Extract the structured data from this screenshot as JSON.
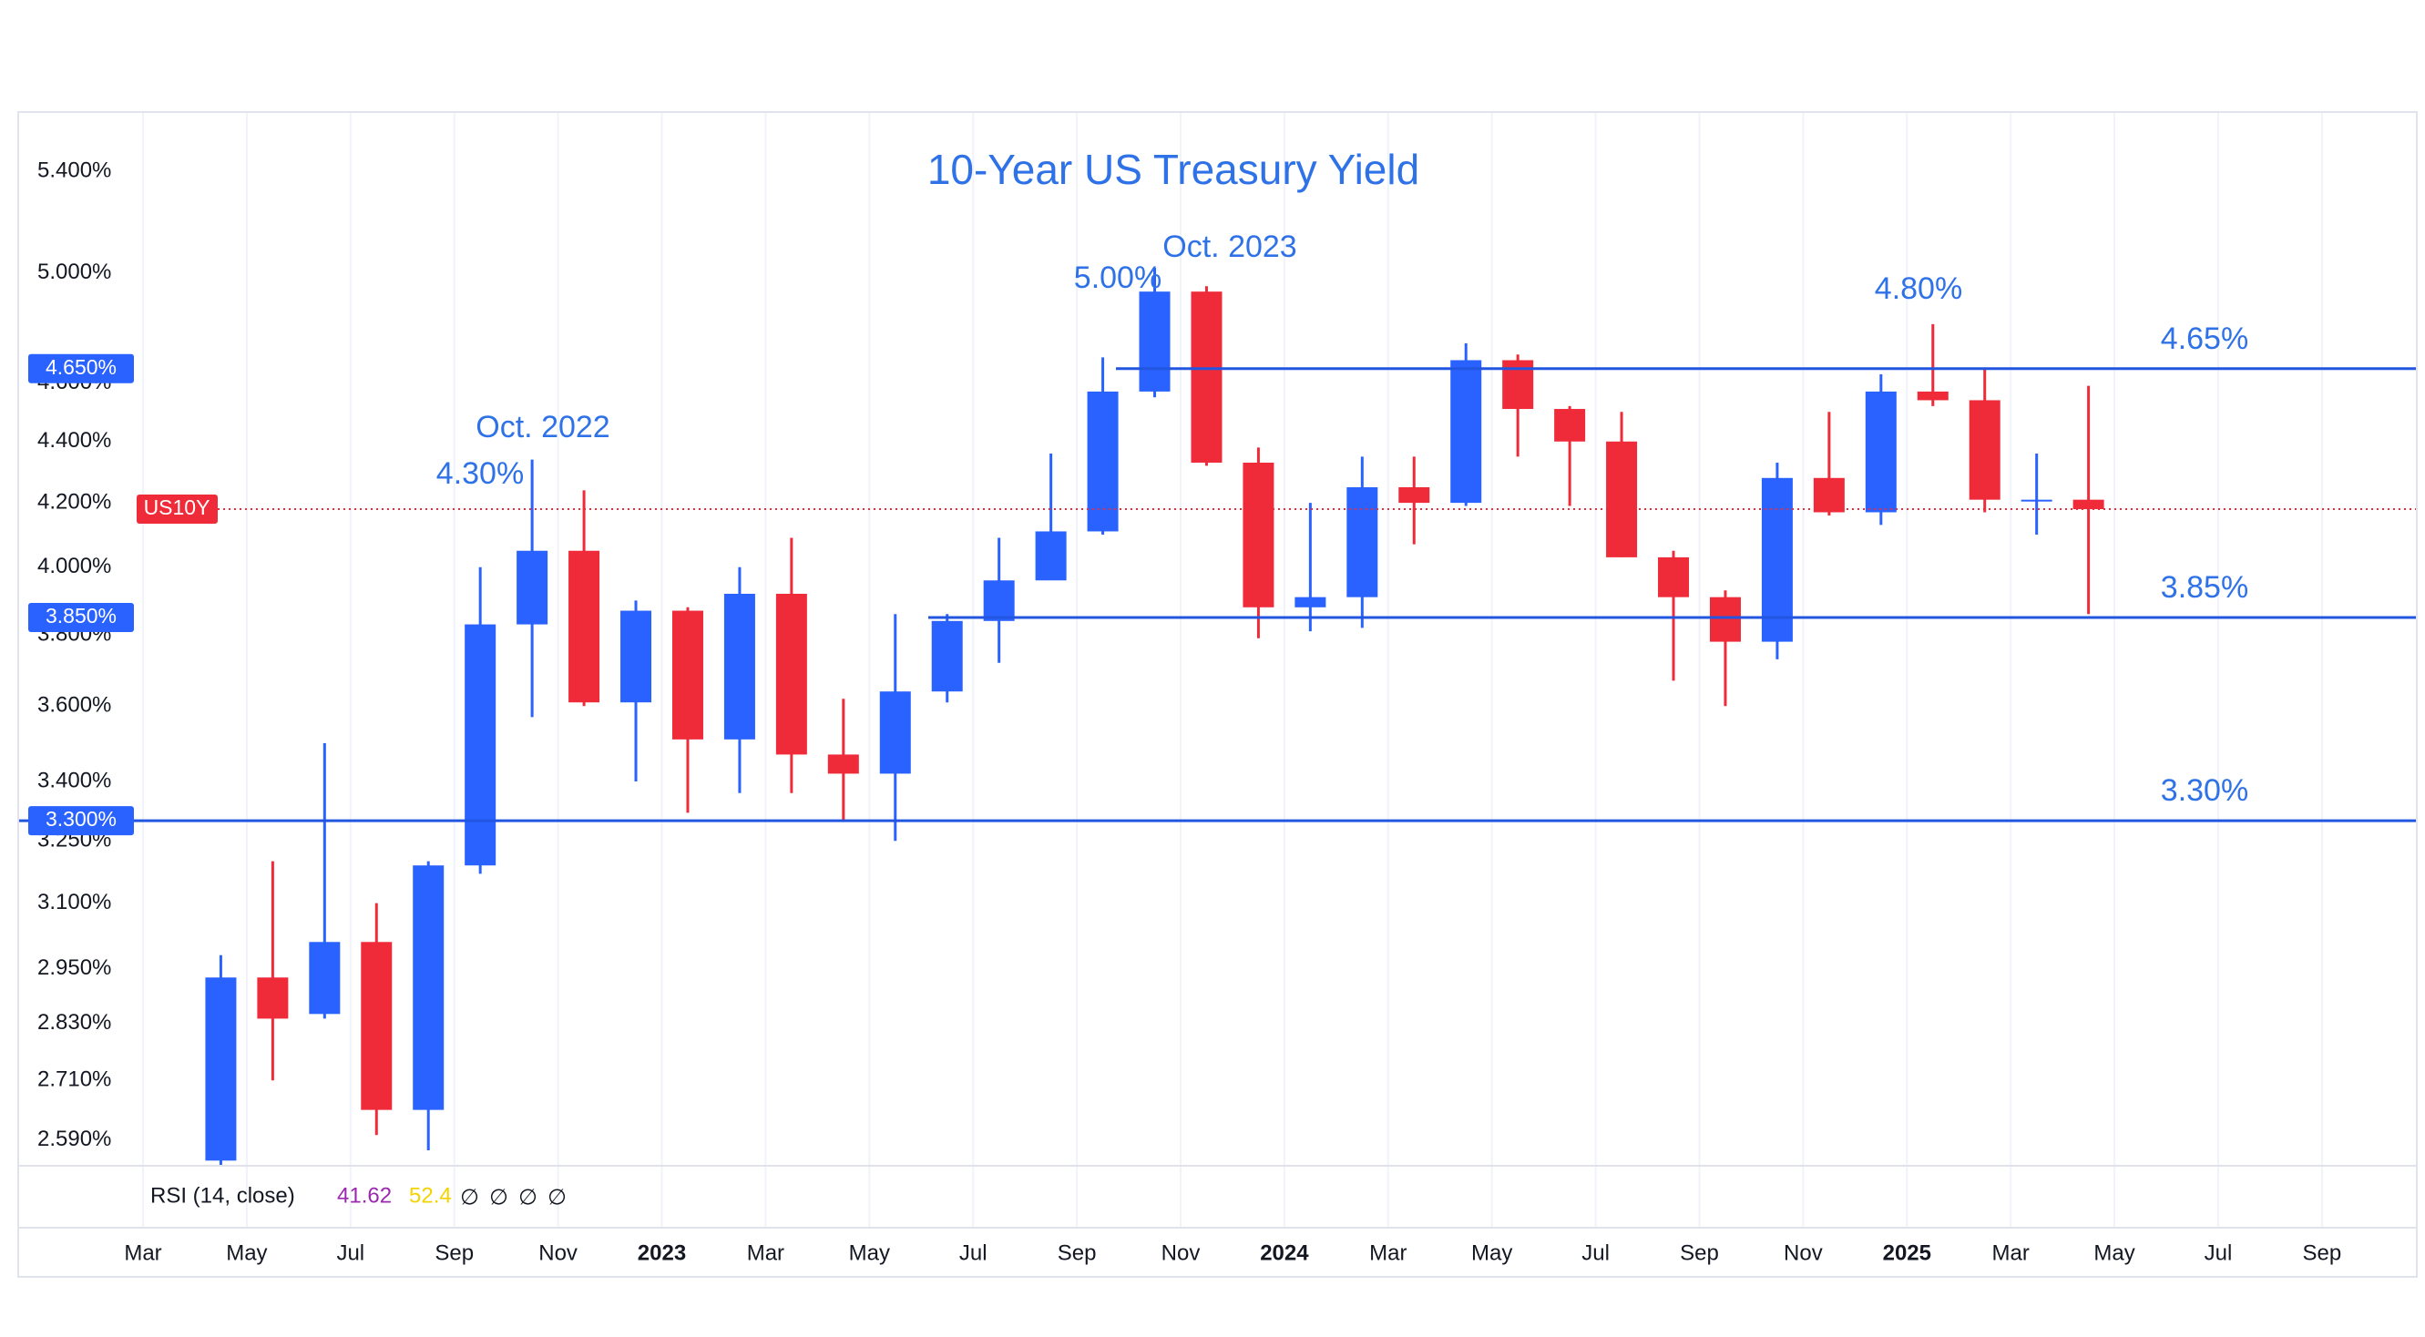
{
  "chart_data": {
    "type": "candlestick",
    "title": "10-Year US Treasury Yield",
    "symbol": "US10Y",
    "log_scale": true,
    "grid": true,
    "up_color": "#2962ff",
    "down_color": "#ef2b3a",
    "x": [
      "2022-04",
      "2022-05",
      "2022-06",
      "2022-07",
      "2022-08",
      "2022-09",
      "2022-10",
      "2022-11",
      "2022-12",
      "2023-01",
      "2023-02",
      "2023-03",
      "2023-04",
      "2023-05",
      "2023-06",
      "2023-07",
      "2023-08",
      "2023-09",
      "2023-10",
      "2023-11",
      "2023-12",
      "2024-01",
      "2024-02",
      "2024-03",
      "2024-04",
      "2024-05",
      "2024-06",
      "2024-07",
      "2024-08",
      "2024-09",
      "2024-10",
      "2024-11",
      "2024-12",
      "2025-01",
      "2025-02",
      "2025-03",
      "2025-04"
    ],
    "open": [
      2.55,
      2.93,
      2.85,
      3.01,
      2.65,
      3.19,
      3.83,
      4.05,
      3.61,
      3.87,
      3.51,
      3.92,
      3.47,
      3.42,
      3.64,
      3.84,
      3.96,
      4.11,
      4.57,
      4.93,
      4.33,
      3.88,
      3.91,
      4.25,
      4.2,
      4.68,
      4.51,
      4.4,
      4.03,
      3.91,
      3.78,
      4.28,
      4.17,
      4.57,
      4.54,
      4.21,
      4.21
    ],
    "high": [
      2.98,
      3.2,
      3.5,
      3.1,
      3.2,
      4.0,
      4.34,
      4.24,
      3.9,
      3.88,
      4.0,
      4.09,
      3.62,
      3.86,
      3.86,
      4.09,
      4.36,
      4.69,
      5.02,
      4.95,
      4.38,
      4.2,
      4.35,
      4.35,
      4.74,
      4.7,
      4.52,
      4.5,
      4.05,
      3.93,
      4.33,
      4.5,
      4.63,
      4.81,
      4.65,
      4.36,
      4.59
    ],
    "low": [
      2.54,
      2.71,
      2.84,
      2.6,
      2.57,
      3.17,
      3.57,
      3.6,
      3.4,
      3.32,
      3.37,
      3.37,
      3.3,
      3.25,
      3.61,
      3.72,
      3.98,
      4.1,
      4.55,
      4.32,
      3.79,
      3.81,
      3.82,
      4.07,
      4.19,
      4.35,
      4.19,
      4.03,
      3.67,
      3.6,
      3.73,
      4.16,
      4.13,
      4.52,
      4.17,
      4.1,
      3.86
    ],
    "close": [
      2.93,
      2.84,
      3.01,
      2.65,
      3.19,
      3.83,
      4.05,
      3.61,
      3.87,
      3.51,
      3.92,
      3.47,
      3.42,
      3.64,
      3.84,
      3.96,
      4.11,
      4.57,
      4.93,
      4.33,
      3.88,
      3.91,
      4.25,
      4.2,
      4.68,
      4.51,
      4.4,
      4.03,
      3.91,
      3.78,
      4.28,
      4.17,
      4.57,
      4.54,
      4.21,
      4.21,
      4.18
    ],
    "ylim": [
      2.54,
      5.63
    ],
    "yticks": [
      {
        "value": 2.59,
        "label": "2.590%"
      },
      {
        "value": 2.71,
        "label": "2.710%"
      },
      {
        "value": 2.83,
        "label": "2.830%"
      },
      {
        "value": 2.95,
        "label": "2.950%"
      },
      {
        "value": 3.1,
        "label": "3.100%"
      },
      {
        "value": 3.25,
        "label": "3.250%"
      },
      {
        "value": 3.4,
        "label": "3.400%"
      },
      {
        "value": 3.6,
        "label": "3.600%"
      },
      {
        "value": 3.8,
        "label": "3.800%"
      },
      {
        "value": 4.0,
        "label": "4.000%"
      },
      {
        "value": 4.2,
        "label": "4.200%"
      },
      {
        "value": 4.4,
        "label": "4.400%"
      },
      {
        "value": 4.6,
        "label": "4.600%"
      },
      {
        "value": 5.0,
        "label": "5.000%"
      },
      {
        "value": 5.4,
        "label": "5.400%"
      }
    ],
    "xticks": [
      {
        "value": "2022-03",
        "label": "Mar"
      },
      {
        "value": "2022-05",
        "label": "May"
      },
      {
        "value": "2022-07",
        "label": "Jul"
      },
      {
        "value": "2022-09",
        "label": "Sep"
      },
      {
        "value": "2022-11",
        "label": "Nov"
      },
      {
        "value": "2023-01",
        "label": "2023"
      },
      {
        "value": "2023-03",
        "label": "Mar"
      },
      {
        "value": "2023-05",
        "label": "May"
      },
      {
        "value": "2023-07",
        "label": "Jul"
      },
      {
        "value": "2023-09",
        "label": "Sep"
      },
      {
        "value": "2023-11",
        "label": "Nov"
      },
      {
        "value": "2024-01",
        "label": "2024"
      },
      {
        "value": "2024-03",
        "label": "Mar"
      },
      {
        "value": "2024-05",
        "label": "May"
      },
      {
        "value": "2024-07",
        "label": "Jul"
      },
      {
        "value": "2024-09",
        "label": "Sep"
      },
      {
        "value": "2024-11",
        "label": "Nov"
      },
      {
        "value": "2025-01",
        "label": "2025"
      },
      {
        "value": "2025-03",
        "label": "Mar"
      },
      {
        "value": "2025-05",
        "label": "May"
      },
      {
        "value": "2025-07",
        "label": "Jul"
      },
      {
        "value": "2025-09",
        "label": "Sep"
      }
    ],
    "levels": [
      {
        "value": 4.65,
        "label": "4.650%",
        "annotation": "4.65%"
      },
      {
        "value": 3.85,
        "label": "3.850%",
        "annotation": "3.85%"
      },
      {
        "value": 3.3,
        "label": "3.300%",
        "annotation": "3.30%"
      }
    ],
    "annotations": [
      "Oct. 2022",
      "4.30%",
      "Oct. 2023",
      "5.00%",
      "4.80%"
    ],
    "indicator": {
      "label": "RSI (14, close)",
      "values": [
        41.62,
        52.4
      ],
      "colors": [
        "#9c27b0",
        "#f5d300"
      ],
      "na_symbols": [
        "∅",
        "∅",
        "∅",
        "∅"
      ]
    }
  }
}
